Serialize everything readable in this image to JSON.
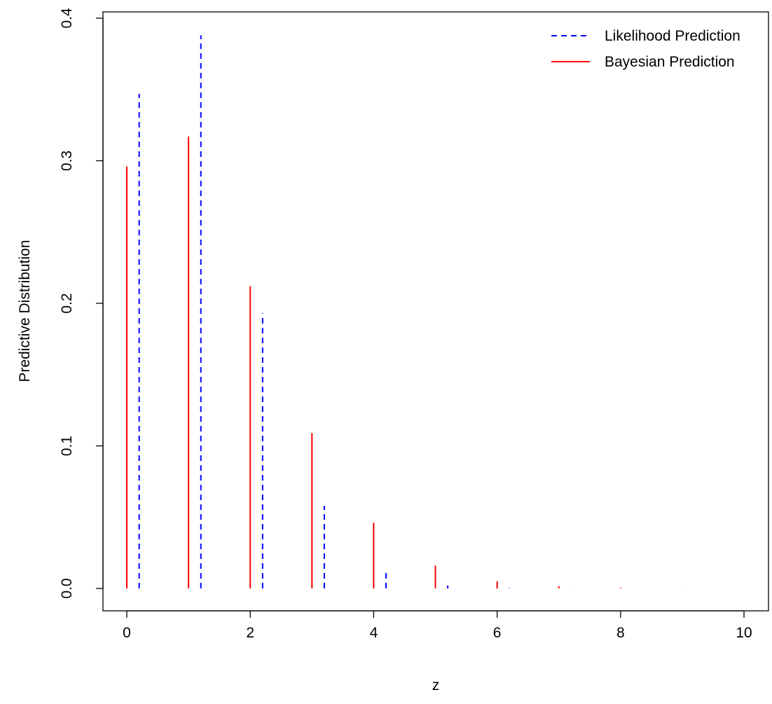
{
  "chart_data": {
    "type": "stem",
    "x_label": "z",
    "y_label": "Predictive Distribution",
    "xlim": [
      -0.386,
      10.397
    ],
    "ylim": [
      -0.0157,
      0.4044
    ],
    "xticks": [
      0,
      2,
      4,
      6,
      8,
      10
    ],
    "yticks": [
      {
        "value": 0,
        "label": "0.0"
      },
      0.1,
      0.2,
      0.3,
      0.4
    ],
    "legend_position": "top-right",
    "series": [
      {
        "name": "Likelihood Prediction",
        "color": "#0000ff",
        "dashed": true,
        "x": [
          0.2,
          1.2,
          2.2,
          3.2,
          4.2,
          5.2,
          6.2,
          7.2,
          8.2,
          9.2,
          10.2
        ],
        "values": [
          0.347,
          0.388,
          0.193,
          0.058,
          0.011,
          0.002,
          0.0003,
          4e-05,
          5e-06,
          6e-07,
          6e-08
        ]
      },
      {
        "name": "Bayesian Prediction",
        "color": "#ff0000",
        "dashed": false,
        "x": [
          0,
          1,
          2,
          3,
          4,
          5,
          6,
          7,
          8,
          9,
          10
        ],
        "values": [
          0.296,
          0.317,
          0.212,
          0.109,
          0.046,
          0.016,
          0.005,
          0.0015,
          0.0004,
          0.0001,
          3e-05
        ]
      }
    ]
  }
}
